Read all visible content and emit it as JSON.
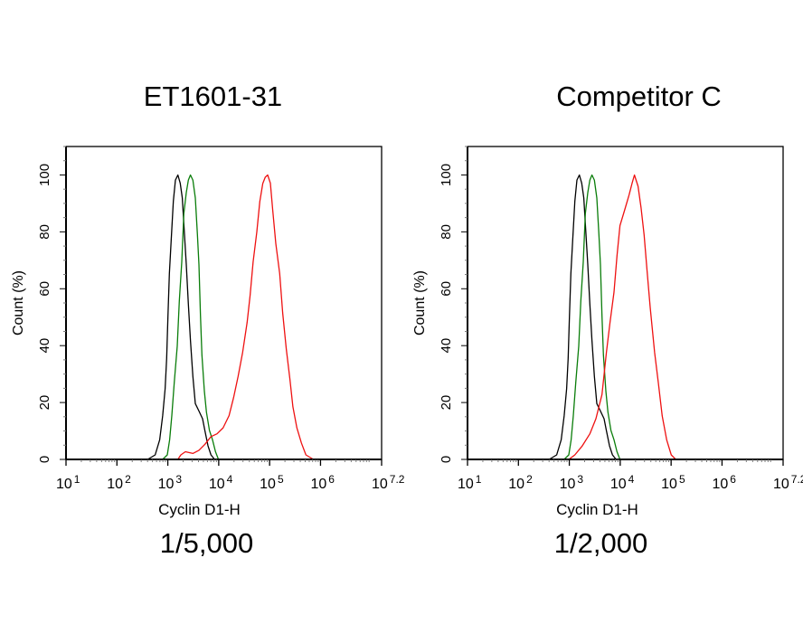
{
  "chart_data": [
    {
      "type": "line",
      "title": "ET1601-31",
      "xlabel": "Cyclin D1-H",
      "ylabel": "Count  (%)",
      "caption": "1/5,000",
      "x_scale": "log",
      "xlim": [
        10,
        15848932
      ],
      "ylim": [
        0,
        110
      ],
      "x_ticks": [
        {
          "base": "10",
          "exp": "1"
        },
        {
          "base": "10",
          "exp": "2"
        },
        {
          "base": "10",
          "exp": "3"
        },
        {
          "base": "10",
          "exp": "4"
        },
        {
          "base": "10",
          "exp": "5"
        },
        {
          "base": "10",
          "exp": "6"
        },
        {
          "base": "10",
          "exp": "7.2"
        }
      ],
      "y_ticks": [
        "0",
        "20",
        "40",
        "60",
        "80",
        "100"
      ],
      "grid": false,
      "series": [
        {
          "color": "#000000",
          "x": [
            402,
            565,
            693,
            794,
            887,
            949,
            1003,
            1073,
            1165,
            1282,
            1411,
            1573,
            1755,
            1929,
            2122,
            2303,
            2535,
            2788,
            3110,
            3467,
            4083,
            4809,
            5360,
            6148,
            7047,
            8299
          ],
          "y": [
            0,
            1.6,
            6.9,
            15.4,
            24.8,
            35.5,
            50.1,
            65.3,
            77.0,
            90.8,
            98.2,
            100,
            97.1,
            91.9,
            79.1,
            68.5,
            54.6,
            41.9,
            29.2,
            19.6,
            17.0,
            14.3,
            10.1,
            4.8,
            1.6,
            0
          ]
        },
        {
          "color": "#0a7d0a",
          "x": [
            794,
            975,
            1088,
            1198,
            1336,
            1531,
            1683,
            1879,
            2066,
            2303,
            2535,
            2788,
            3110,
            3467,
            3811,
            4083,
            4374,
            4677,
            5224,
            5744,
            6577,
            7536,
            8650,
            9910
          ],
          "y": [
            0,
            1.6,
            6.9,
            15.4,
            27.0,
            39.8,
            55.7,
            69.4,
            86.4,
            93.8,
            98.2,
            100,
            98.2,
            91.9,
            79.1,
            68.5,
            50.5,
            36.7,
            24.0,
            16.6,
            10.2,
            6.9,
            2.7,
            0
          ]
        },
        {
          "color": "#ee1111",
          "x": [
            1573,
            1803,
            2213,
            3110,
            4083,
            5360,
            7047,
            9250,
            12160,
            15960,
            19590,
            24050,
            29450,
            36140,
            41400,
            47450,
            55980,
            64120,
            73470,
            81970,
            91450,
            103300,
            115300,
            132100,
            157800,
            180800,
            212900,
            250600,
            287100,
            342800,
            420600,
            516000,
            725600
          ],
          "y": [
            0,
            1.6,
            2.7,
            2.1,
            3.2,
            5.3,
            8.0,
            9.0,
            11.1,
            15.4,
            21.7,
            29.2,
            37.6,
            48.2,
            57.7,
            69.4,
            80.0,
            90.6,
            97.0,
            99.2,
            100,
            97.1,
            87.6,
            75.9,
            65.3,
            51.5,
            38.8,
            28.2,
            18.5,
            11.1,
            5.8,
            1.6,
            0
          ]
        }
      ]
    },
    {
      "type": "line",
      "title": "Competitor C",
      "xlabel": "Cyclin D1-H",
      "ylabel": "Count  (%)",
      "caption": "1/2,000",
      "x_scale": "log",
      "xlim": [
        10,
        15848932
      ],
      "ylim": [
        0,
        110
      ],
      "x_ticks": [
        {
          "base": "10",
          "exp": "1"
        },
        {
          "base": "10",
          "exp": "2"
        },
        {
          "base": "10",
          "exp": "3"
        },
        {
          "base": "10",
          "exp": "4"
        },
        {
          "base": "10",
          "exp": "5"
        },
        {
          "base": "10",
          "exp": "6"
        },
        {
          "base": "10",
          "exp": "7.2"
        }
      ],
      "y_ticks": [
        "0",
        "20",
        "40",
        "60",
        "80",
        "100"
      ],
      "grid": false,
      "series": [
        {
          "color": "#000000",
          "x": [
            402,
            565,
            693,
            794,
            887,
            949,
            1003,
            1073,
            1165,
            1282,
            1411,
            1573,
            1755,
            1929,
            2122,
            2303,
            2535,
            2788,
            3110,
            3467,
            4083,
            4809,
            5360,
            6148,
            7047,
            8299
          ],
          "y": [
            0,
            1.6,
            6.9,
            15.4,
            24.8,
            35.5,
            50.1,
            65.3,
            77.0,
            90.8,
            98.2,
            100,
            97.1,
            91.9,
            79.1,
            68.5,
            54.6,
            41.9,
            29.2,
            19.6,
            17.0,
            14.3,
            10.1,
            4.8,
            1.6,
            0
          ]
        },
        {
          "color": "#0a7d0a",
          "x": [
            794,
            975,
            1088,
            1198,
            1336,
            1531,
            1683,
            1879,
            2066,
            2303,
            2535,
            2788,
            3110,
            3467,
            3811,
            4083,
            4374,
            4677,
            5224,
            5744,
            6577,
            7536,
            8650,
            9910
          ],
          "y": [
            0,
            1.6,
            6.9,
            15.4,
            27.0,
            39.8,
            55.7,
            69.4,
            86.4,
            93.8,
            98.2,
            100,
            98.2,
            91.9,
            79.1,
            68.5,
            50.5,
            36.7,
            24.0,
            16.6,
            10.2,
            6.9,
            2.7,
            0
          ]
        },
        {
          "color": "#ee1111",
          "x": [
            975,
            1282,
            1803,
            2535,
            3327,
            4374,
            5360,
            6310,
            7536,
            8650,
            9910,
            12160,
            14890,
            17100,
            19050,
            22440,
            25700,
            29450,
            33760,
            38700,
            47450,
            55980,
            66830,
            81970,
            100500,
            123300
          ],
          "y": [
            0,
            1.6,
            4.8,
            9.0,
            14.3,
            22.8,
            37.6,
            48.2,
            58.8,
            71.5,
            82.2,
            87.6,
            92.9,
            97.1,
            100,
            96.0,
            88.5,
            78.9,
            66.2,
            53.5,
            37.6,
            27.0,
            15.3,
            6.8,
            1.6,
            0
          ]
        }
      ]
    }
  ]
}
